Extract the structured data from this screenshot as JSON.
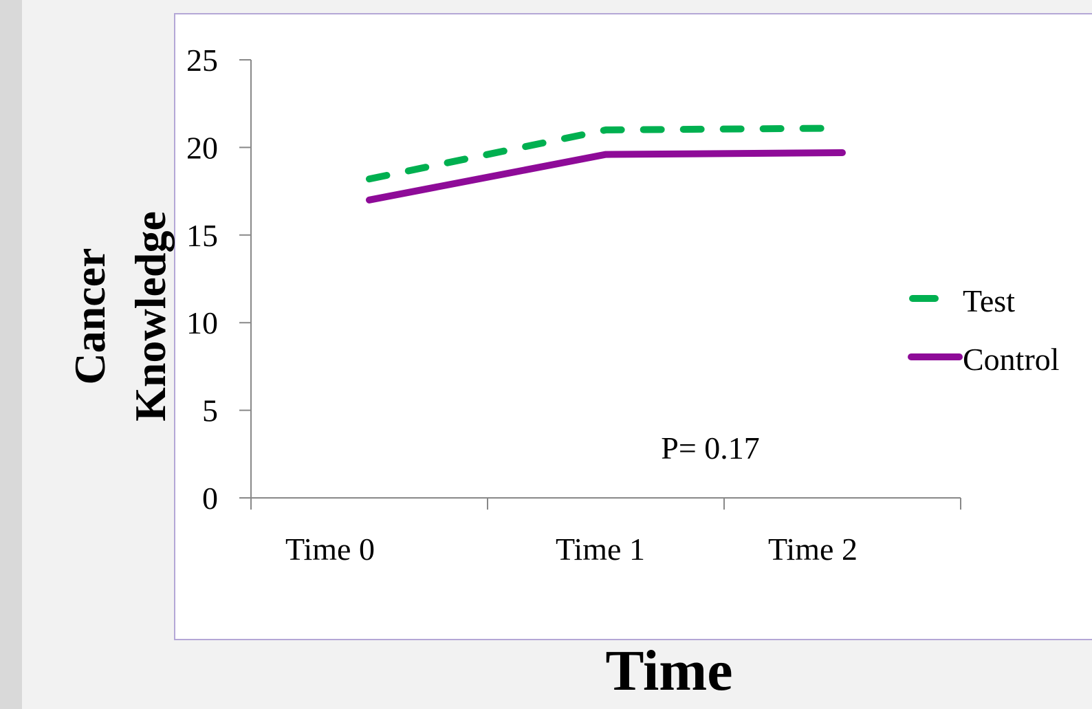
{
  "chart_data": {
    "type": "line",
    "categories": [
      "Time 0",
      "Time 1",
      "Time 2"
    ],
    "series": [
      {
        "name": "Test",
        "values": [
          18.2,
          21.0,
          21.1
        ],
        "color": "#00b050",
        "style": "dashed"
      },
      {
        "name": "Control",
        "values": [
          17.0,
          19.6,
          19.7
        ],
        "color": "#8e0b98",
        "style": "solid"
      }
    ],
    "title": "",
    "xlabel": "Time",
    "ylabel_lines": [
      "Cancer",
      "Knowledge"
    ],
    "ylim": [
      0,
      25
    ],
    "yticks": [
      0,
      5,
      10,
      15,
      20,
      25
    ],
    "annotation": "P= 0.17",
    "grid": false,
    "legend": "right"
  }
}
